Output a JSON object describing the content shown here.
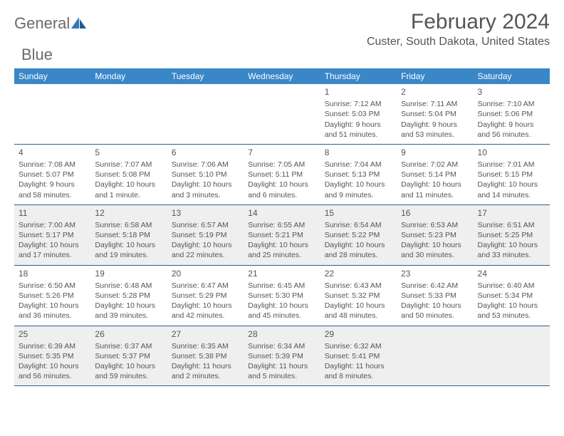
{
  "logo": {
    "word1": "General",
    "word2": "Blue"
  },
  "title": "February 2024",
  "location": "Custer, South Dakota, United States",
  "colors": {
    "header_bg": "#3a87c8",
    "header_text": "#ffffff",
    "cell_border": "#2f5f8f",
    "shaded_bg": "#efefef",
    "text": "#555555",
    "logo_gray": "#6a6a6a",
    "logo_blue": "#2f79b9"
  },
  "typography": {
    "month_title_size": 30,
    "location_size": 16,
    "dayhead_size": 12,
    "daynum_size": 12,
    "body_size": 10.5
  },
  "day_names": [
    "Sunday",
    "Monday",
    "Tuesday",
    "Wednesday",
    "Thursday",
    "Friday",
    "Saturday"
  ],
  "weeks": [
    {
      "shaded": false,
      "days": [
        null,
        null,
        null,
        null,
        {
          "num": "1",
          "sunrise": "7:12 AM",
          "sunset": "5:03 PM",
          "daylight": "9 hours and 51 minutes."
        },
        {
          "num": "2",
          "sunrise": "7:11 AM",
          "sunset": "5:04 PM",
          "daylight": "9 hours and 53 minutes."
        },
        {
          "num": "3",
          "sunrise": "7:10 AM",
          "sunset": "5:06 PM",
          "daylight": "9 hours and 56 minutes."
        }
      ]
    },
    {
      "shaded": false,
      "days": [
        {
          "num": "4",
          "sunrise": "7:08 AM",
          "sunset": "5:07 PM",
          "daylight": "9 hours and 58 minutes."
        },
        {
          "num": "5",
          "sunrise": "7:07 AM",
          "sunset": "5:08 PM",
          "daylight": "10 hours and 1 minute."
        },
        {
          "num": "6",
          "sunrise": "7:06 AM",
          "sunset": "5:10 PM",
          "daylight": "10 hours and 3 minutes."
        },
        {
          "num": "7",
          "sunrise": "7:05 AM",
          "sunset": "5:11 PM",
          "daylight": "10 hours and 6 minutes."
        },
        {
          "num": "8",
          "sunrise": "7:04 AM",
          "sunset": "5:13 PM",
          "daylight": "10 hours and 9 minutes."
        },
        {
          "num": "9",
          "sunrise": "7:02 AM",
          "sunset": "5:14 PM",
          "daylight": "10 hours and 11 minutes."
        },
        {
          "num": "10",
          "sunrise": "7:01 AM",
          "sunset": "5:15 PM",
          "daylight": "10 hours and 14 minutes."
        }
      ]
    },
    {
      "shaded": true,
      "days": [
        {
          "num": "11",
          "sunrise": "7:00 AM",
          "sunset": "5:17 PM",
          "daylight": "10 hours and 17 minutes."
        },
        {
          "num": "12",
          "sunrise": "6:58 AM",
          "sunset": "5:18 PM",
          "daylight": "10 hours and 19 minutes."
        },
        {
          "num": "13",
          "sunrise": "6:57 AM",
          "sunset": "5:19 PM",
          "daylight": "10 hours and 22 minutes."
        },
        {
          "num": "14",
          "sunrise": "6:55 AM",
          "sunset": "5:21 PM",
          "daylight": "10 hours and 25 minutes."
        },
        {
          "num": "15",
          "sunrise": "6:54 AM",
          "sunset": "5:22 PM",
          "daylight": "10 hours and 28 minutes."
        },
        {
          "num": "16",
          "sunrise": "6:53 AM",
          "sunset": "5:23 PM",
          "daylight": "10 hours and 30 minutes."
        },
        {
          "num": "17",
          "sunrise": "6:51 AM",
          "sunset": "5:25 PM",
          "daylight": "10 hours and 33 minutes."
        }
      ]
    },
    {
      "shaded": false,
      "days": [
        {
          "num": "18",
          "sunrise": "6:50 AM",
          "sunset": "5:26 PM",
          "daylight": "10 hours and 36 minutes."
        },
        {
          "num": "19",
          "sunrise": "6:48 AM",
          "sunset": "5:28 PM",
          "daylight": "10 hours and 39 minutes."
        },
        {
          "num": "20",
          "sunrise": "6:47 AM",
          "sunset": "5:29 PM",
          "daylight": "10 hours and 42 minutes."
        },
        {
          "num": "21",
          "sunrise": "6:45 AM",
          "sunset": "5:30 PM",
          "daylight": "10 hours and 45 minutes."
        },
        {
          "num": "22",
          "sunrise": "6:43 AM",
          "sunset": "5:32 PM",
          "daylight": "10 hours and 48 minutes."
        },
        {
          "num": "23",
          "sunrise": "6:42 AM",
          "sunset": "5:33 PM",
          "daylight": "10 hours and 50 minutes."
        },
        {
          "num": "24",
          "sunrise": "6:40 AM",
          "sunset": "5:34 PM",
          "daylight": "10 hours and 53 minutes."
        }
      ]
    },
    {
      "shaded": true,
      "days": [
        {
          "num": "25",
          "sunrise": "6:39 AM",
          "sunset": "5:35 PM",
          "daylight": "10 hours and 56 minutes."
        },
        {
          "num": "26",
          "sunrise": "6:37 AM",
          "sunset": "5:37 PM",
          "daylight": "10 hours and 59 minutes."
        },
        {
          "num": "27",
          "sunrise": "6:35 AM",
          "sunset": "5:38 PM",
          "daylight": "11 hours and 2 minutes."
        },
        {
          "num": "28",
          "sunrise": "6:34 AM",
          "sunset": "5:39 PM",
          "daylight": "11 hours and 5 minutes."
        },
        {
          "num": "29",
          "sunrise": "6:32 AM",
          "sunset": "5:41 PM",
          "daylight": "11 hours and 8 minutes."
        },
        null,
        null
      ]
    }
  ],
  "labels": {
    "sunrise": "Sunrise: ",
    "sunset": "Sunset: ",
    "daylight": "Daylight: "
  }
}
